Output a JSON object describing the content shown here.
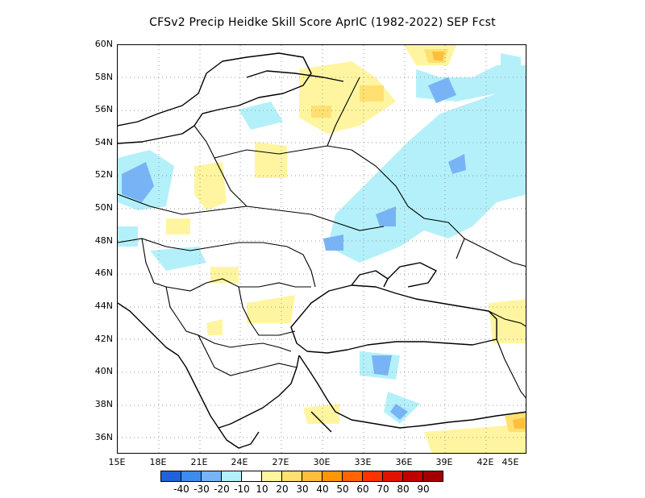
{
  "title": "CFSv2 Precip Heidke Skill Score AprIC (1982-2022) SEP Fcst",
  "lat_labels": [
    "60N",
    "58N",
    "56N",
    "54N",
    "52N",
    "50N",
    "48N",
    "46N",
    "44N",
    "42N",
    "40N",
    "38N",
    "36N"
  ],
  "lon_labels": [
    "15E",
    "18E",
    "21E",
    "24E",
    "27E",
    "30E",
    "33E",
    "36E",
    "39E",
    "42E",
    "45E"
  ],
  "colorbar": {
    "colors": [
      "#1f63dc",
      "#3c8cf0",
      "#78b4f5",
      "#b4f0fa",
      "#ffffff",
      "#fff5a0",
      "#ffe070",
      "#ffbe3c",
      "#ff9600",
      "#ff6400",
      "#ff3200",
      "#e11400",
      "#c00000",
      "#a50000"
    ],
    "labels": [
      "-40",
      "-30",
      "-20",
      "-10",
      "10",
      "20",
      "30",
      "40",
      "50",
      "60",
      "70",
      "80",
      "90"
    ]
  },
  "colors": {
    "frame": "#000000",
    "coast": "#000000",
    "grid": "#999999"
  }
}
